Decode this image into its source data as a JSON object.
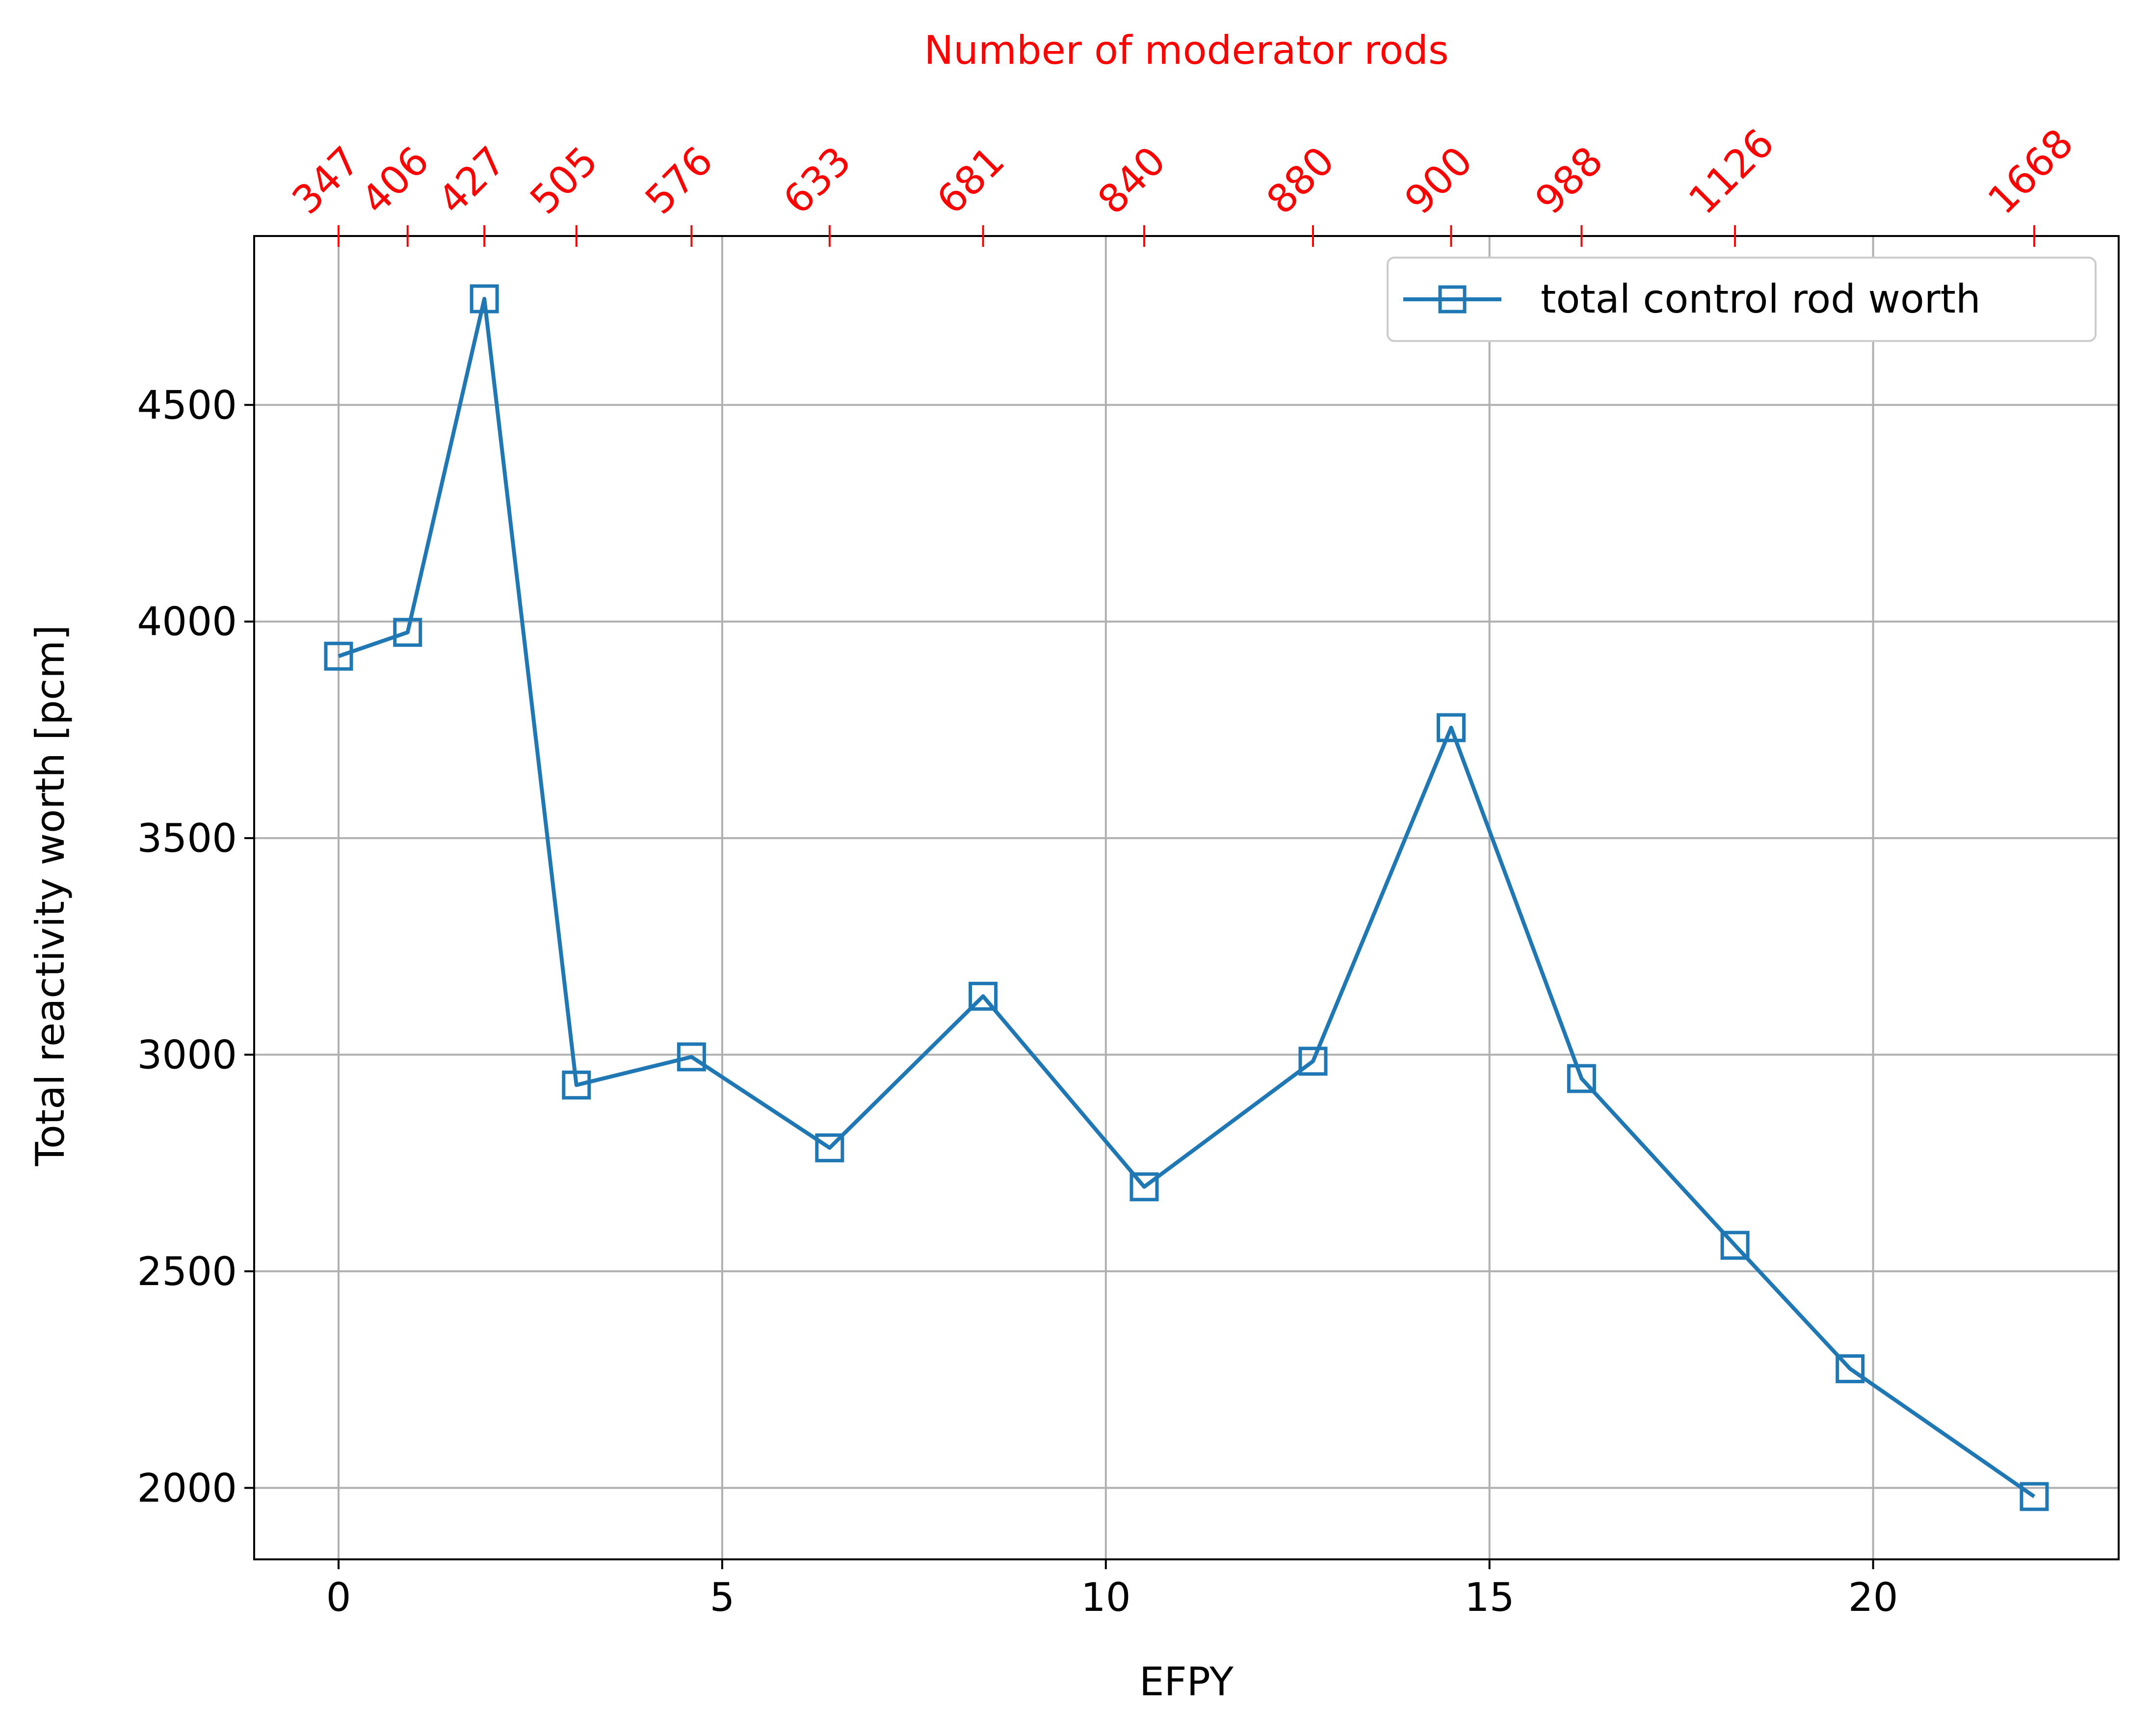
{
  "chart_data": {
    "type": "line",
    "xlabel": "EFPY",
    "ylabel": "Total reactivity worth [pcm]",
    "top_xlabel": "Number of moderator rods",
    "xlim": [
      -1.1,
      23.2
    ],
    "ylim": [
      1835,
      4890
    ],
    "xticks": [
      0,
      5,
      10,
      15,
      20
    ],
    "yticks": [
      2000,
      2500,
      3000,
      3500,
      4000,
      4500
    ],
    "grid": true,
    "legend_position": "top-right",
    "series": [
      {
        "name": "total control rod worth",
        "color": "#1f77b4",
        "marker": "square-open",
        "x": [
          0.0,
          0.9,
          1.9,
          3.1,
          4.6,
          6.4,
          8.4,
          10.5,
          12.7,
          14.5,
          16.2,
          18.2,
          19.7,
          22.1
        ],
        "y": [
          3920,
          3975,
          4745,
          2930,
          2995,
          2785,
          3135,
          2695,
          2985,
          3755,
          2945,
          2560,
          2275,
          1980
        ]
      }
    ],
    "top_axis": {
      "color": "#ff0000",
      "tick_positions_efpy": [
        0.0,
        0.9,
        1.9,
        3.1,
        4.6,
        6.4,
        8.4,
        10.5,
        12.7,
        14.5,
        16.2,
        18.2,
        22.1
      ],
      "tick_labels": [
        "347",
        "406",
        "427",
        "505",
        "576",
        "633",
        "681",
        "840",
        "880",
        "900",
        "988",
        "1126",
        "1668"
      ]
    }
  }
}
